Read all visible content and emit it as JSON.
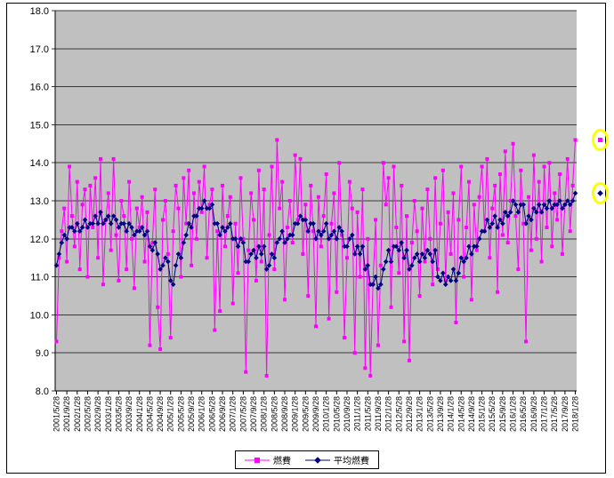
{
  "chart_data": {
    "type": "line",
    "title": "",
    "xlabel": "",
    "ylabel": "",
    "ylim": [
      8.0,
      18.0
    ],
    "ytick_step": 1.0,
    "grid": true,
    "plot_bg": "#c0c0c0",
    "highlight_color": "#ffff00",
    "legend_position": "bottom-center",
    "y_tick_labels": [
      "8.0",
      "9.0",
      "10.0",
      "11.0",
      "12.0",
      "13.0",
      "14.0",
      "15.0",
      "16.0",
      "17.0",
      "18.0"
    ],
    "points_per_tick": 4,
    "x_tick_labels": [
      "2001/5/28",
      "2001/9/28",
      "2002/1/28",
      "2002/5/28",
      "2002/9/28",
      "2003/1/28",
      "2003/5/28",
      "2003/9/28",
      "2004/1/28",
      "2004/5/28",
      "2004/9/28",
      "2005/1/28",
      "2005/5/28",
      "2005/9/28",
      "2006/1/28",
      "2006/5/28",
      "2006/9/28",
      "2007/1/28",
      "2007/5/28",
      "2007/9/28",
      "2008/1/28",
      "2008/5/28",
      "2008/9/28",
      "2009/1/28",
      "2009/5/28",
      "2009/9/28",
      "2010/1/28",
      "2010/5/28",
      "2010/9/28",
      "2011/1/28",
      "2011/5/28",
      "2011/9/28",
      "2012/1/28",
      "2012/5/28",
      "2012/9/28",
      "2013/1/28",
      "2013/5/28",
      "2013/9/28",
      "2014/1/28",
      "2014/5/28",
      "2014/9/28",
      "2015/1/28",
      "2015/5/28",
      "2015/9/28",
      "2016/1/28",
      "2016/5/28",
      "2016/9/28",
      "2017/1/28",
      "2017/5/28",
      "2017/9/28",
      "2018/1/28"
    ],
    "series": [
      {
        "name": "燃費",
        "color": "#ff00ff",
        "marker": "square",
        "values": [
          9.3,
          11.5,
          12.2,
          12.8,
          11.4,
          13.9,
          12.6,
          11.8,
          13.5,
          11.2,
          12.9,
          13.3,
          11.0,
          13.4,
          12.3,
          13.6,
          11.5,
          14.1,
          10.8,
          12.5,
          13.2,
          11.7,
          14.1,
          12.1,
          10.9,
          13.0,
          12.6,
          11.2,
          13.5,
          12.0,
          10.7,
          12.8,
          12.3,
          13.1,
          11.4,
          12.7,
          9.2,
          11.9,
          13.3,
          10.2,
          9.1,
          12.5,
          13.0,
          11.6,
          9.4,
          12.2,
          13.4,
          12.8,
          11.0,
          13.6,
          12.4,
          13.8,
          11.3,
          13.2,
          12.0,
          13.5,
          12.7,
          13.9,
          11.5,
          12.9,
          13.3,
          9.6,
          12.2,
          10.1,
          13.4,
          11.8,
          12.6,
          13.1,
          10.3,
          12.4,
          11.1,
          13.6,
          12.0,
          8.5,
          11.7,
          13.2,
          12.5,
          10.9,
          13.8,
          11.4,
          13.3,
          8.4,
          12.1,
          13.9,
          11.2,
          14.6,
          12.8,
          13.5,
          10.4,
          12.3,
          13.0,
          11.9,
          14.2,
          12.5,
          14.1,
          11.6,
          12.9,
          10.5,
          13.4,
          12.2,
          9.7,
          13.1,
          11.8,
          12.6,
          13.7,
          9.9,
          12.4,
          13.2,
          10.6,
          14.0,
          12.1,
          9.4,
          11.5,
          13.5,
          12.8,
          9.0,
          12.7,
          11.0,
          13.3,
          8.6,
          12.0,
          8.4,
          10.8,
          12.5,
          9.2,
          11.3,
          14.0,
          12.9,
          13.6,
          10.2,
          13.9,
          12.3,
          11.1,
          13.4,
          9.3,
          12.6,
          8.8,
          11.9,
          13.0,
          12.2,
          10.5,
          12.8,
          11.4,
          13.3,
          12.0,
          10.8,
          13.6,
          11.2,
          12.4,
          13.8,
          10.9,
          12.7,
          11.6,
          13.2,
          9.8,
          12.5,
          13.9,
          11.0,
          12.3,
          13.5,
          10.4,
          12.9,
          11.7,
          13.1,
          13.9,
          12.2,
          14.1,
          11.5,
          12.8,
          13.4,
          10.6,
          13.7,
          12.1,
          14.3,
          11.9,
          13.0,
          14.5,
          12.6,
          11.2,
          13.8,
          12.4,
          9.3,
          13.1,
          11.7,
          14.2,
          12.0,
          13.5,
          11.4,
          13.9,
          12.3,
          14.0,
          11.8,
          13.2,
          12.5,
          13.7,
          11.6,
          12.9,
          14.1,
          12.2,
          13.4,
          14.6
        ]
      },
      {
        "name": "平均燃費",
        "color": "#000080",
        "marker": "diamond",
        "values": [
          11.3,
          11.6,
          11.9,
          12.1,
          12.0,
          12.3,
          12.3,
          12.2,
          12.4,
          12.2,
          12.3,
          12.5,
          12.3,
          12.4,
          12.4,
          12.6,
          12.4,
          12.7,
          12.4,
          12.5,
          12.6,
          12.4,
          12.6,
          12.5,
          12.3,
          12.4,
          12.4,
          12.2,
          12.4,
          12.3,
          12.1,
          12.2,
          12.2,
          12.3,
          12.1,
          12.2,
          11.8,
          11.7,
          11.9,
          11.6,
          11.2,
          11.3,
          11.5,
          11.4,
          10.9,
          10.8,
          11.3,
          11.6,
          11.5,
          11.9,
          12.1,
          12.4,
          12.3,
          12.6,
          12.6,
          12.8,
          12.8,
          13.0,
          12.8,
          12.8,
          12.9,
          12.4,
          12.4,
          12.1,
          12.3,
          12.2,
          12.3,
          12.4,
          12.0,
          12.0,
          11.8,
          12.0,
          11.9,
          11.4,
          11.4,
          11.6,
          11.7,
          11.5,
          11.8,
          11.6,
          11.8,
          11.2,
          11.3,
          11.6,
          11.5,
          11.9,
          12.0,
          12.2,
          11.9,
          12.0,
          12.1,
          12.1,
          12.4,
          12.4,
          12.6,
          12.5,
          12.5,
          12.2,
          12.4,
          12.4,
          12.0,
          12.2,
          12.1,
          12.2,
          12.4,
          12.0,
          12.1,
          12.2,
          12.0,
          12.3,
          12.2,
          11.8,
          11.8,
          12.0,
          12.1,
          11.6,
          11.8,
          11.6,
          11.8,
          11.2,
          11.3,
          10.8,
          10.8,
          11.0,
          10.7,
          10.8,
          11.2,
          11.4,
          11.7,
          11.4,
          11.8,
          11.8,
          11.7,
          11.9,
          11.5,
          11.7,
          11.2,
          11.3,
          11.5,
          11.6,
          11.4,
          11.6,
          11.5,
          11.7,
          11.6,
          11.4,
          11.7,
          11.0,
          10.9,
          11.1,
          10.8,
          11.0,
          10.9,
          11.2,
          10.9,
          11.1,
          11.5,
          11.4,
          11.5,
          11.8,
          11.6,
          11.8,
          11.8,
          12.0,
          12.2,
          12.2,
          12.5,
          12.3,
          12.4,
          12.6,
          12.3,
          12.5,
          12.4,
          12.7,
          12.6,
          12.7,
          13.0,
          12.9,
          12.7,
          12.9,
          12.9,
          12.4,
          12.6,
          12.5,
          12.8,
          12.7,
          12.9,
          12.7,
          12.9,
          12.8,
          13.0,
          12.8,
          12.9,
          12.9,
          13.0,
          12.8,
          12.9,
          13.0,
          12.9,
          13.0,
          13.2
        ]
      }
    ],
    "annotations": [
      {
        "label": "latest-fuel-highlight",
        "series": 0,
        "point_index": 200,
        "dx": 28
      },
      {
        "label": "latest-average-highlight",
        "series": 1,
        "point_index": 200,
        "dx": 28
      }
    ]
  }
}
